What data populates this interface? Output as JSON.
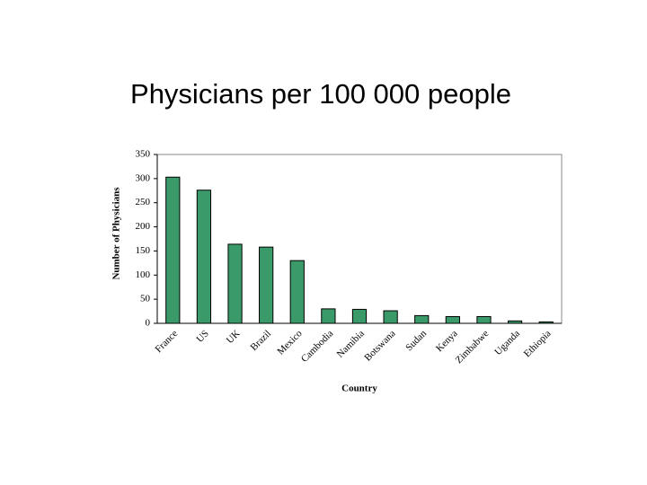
{
  "chart_data": {
    "type": "bar",
    "title": "Physicians per 100 000 people",
    "y_label": "Number of Physicians",
    "x_label": "Country",
    "categories": [
      "France",
      "US",
      "UK",
      "Brazil",
      "Mexico",
      "Cambodia",
      "Namibia",
      "Botswana",
      "Sudan",
      "Kenya",
      "Zimbabwe",
      "Uganda",
      "Ethiopia"
    ],
    "values": [
      303,
      276,
      164,
      158,
      130,
      30,
      29,
      26,
      16,
      14,
      14,
      5,
      3
    ],
    "color": "#3a9a6a",
    "ylim": [
      0,
      350
    ],
    "yticks": [
      0,
      50,
      100,
      150,
      200,
      250,
      300,
      350
    ],
    "grid": false
  }
}
